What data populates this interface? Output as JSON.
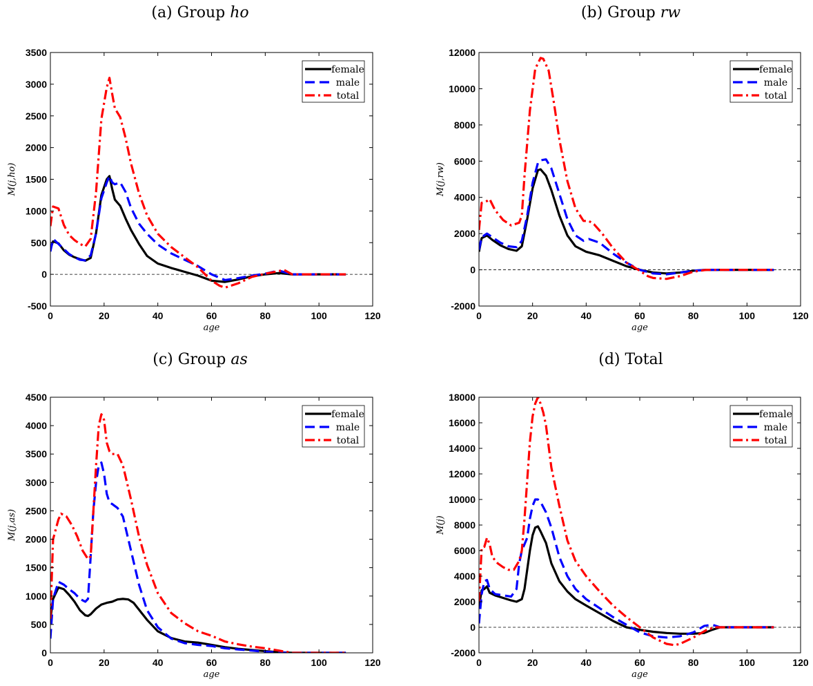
{
  "chart_data": [
    {
      "type": "line",
      "caption_prefix": "(a) Group ",
      "caption_italic": "ho",
      "xlabel": "age",
      "ylabel": "M(j,ho)",
      "xlim": [
        0,
        120
      ],
      "ylim": [
        -500,
        3500
      ],
      "xticks": [
        0,
        20,
        40,
        60,
        80,
        100,
        120
      ],
      "yticks": [
        -500,
        0,
        500,
        1000,
        1500,
        2000,
        2500,
        3000,
        3500
      ],
      "legend_position": "top-right",
      "zero_line": true,
      "series": [
        {
          "name": "female",
          "color": "#000000",
          "dash": "solid",
          "x": [
            0,
            1,
            3,
            5,
            7,
            9,
            11,
            13,
            15,
            17,
            19,
            21,
            22,
            23,
            24,
            26,
            28,
            30,
            33,
            36,
            40,
            45,
            50,
            55,
            60,
            65,
            70,
            75,
            80,
            85,
            90,
            95,
            100,
            110
          ],
          "y": [
            400,
            520,
            490,
            380,
            310,
            270,
            240,
            215,
            260,
            650,
            1250,
            1500,
            1550,
            1350,
            1180,
            1080,
            880,
            700,
            480,
            290,
            170,
            100,
            40,
            -20,
            -100,
            -120,
            -80,
            -30,
            0,
            20,
            0,
            0,
            0,
            0
          ]
        },
        {
          "name": "male",
          "color": "#0000ff",
          "dash": "dash",
          "x": [
            0,
            1,
            3,
            5,
            7,
            9,
            11,
            13,
            15,
            17,
            19,
            21,
            22,
            23,
            24,
            26,
            28,
            30,
            33,
            36,
            40,
            45,
            50,
            55,
            60,
            65,
            70,
            75,
            80,
            85,
            90,
            95,
            100,
            110
          ],
          "y": [
            360,
            560,
            480,
            400,
            320,
            270,
            230,
            220,
            300,
            650,
            1200,
            1450,
            1550,
            1450,
            1420,
            1450,
            1300,
            1050,
            800,
            640,
            470,
            330,
            230,
            130,
            0,
            -90,
            -60,
            -20,
            10,
            60,
            0,
            0,
            0,
            0
          ]
        },
        {
          "name": "total",
          "color": "#ff0000",
          "dash": "dashdot",
          "x": [
            0,
            1,
            3,
            5,
            7,
            9,
            11,
            13,
            15,
            17,
            19,
            21,
            22,
            23,
            24,
            26,
            28,
            30,
            33,
            36,
            40,
            45,
            50,
            55,
            60,
            63,
            65,
            70,
            75,
            80,
            85,
            87,
            90,
            95,
            100,
            110
          ],
          "y": [
            760,
            1070,
            1040,
            780,
            620,
            540,
            480,
            440,
            560,
            1300,
            2450,
            2950,
            3100,
            2850,
            2620,
            2480,
            2150,
            1750,
            1280,
            930,
            640,
            430,
            270,
            110,
            -100,
            -180,
            -210,
            -140,
            -40,
            10,
            50,
            70,
            0,
            0,
            0,
            0
          ]
        }
      ]
    },
    {
      "type": "line",
      "caption_prefix": "(b) Group ",
      "caption_italic": "rw",
      "xlabel": "age",
      "ylabel": "M(j,rw)",
      "xlim": [
        0,
        120
      ],
      "ylim": [
        -2000,
        12000
      ],
      "xticks": [
        0,
        20,
        40,
        60,
        80,
        100,
        120
      ],
      "yticks": [
        -2000,
        0,
        2000,
        4000,
        6000,
        8000,
        10000,
        12000
      ],
      "legend_position": "top-right",
      "zero_line": true,
      "series": [
        {
          "name": "female",
          "color": "#000000",
          "dash": "solid",
          "x": [
            0,
            1,
            3,
            5,
            8,
            11,
            14,
            16,
            18,
            20,
            22,
            23,
            25,
            27,
            30,
            33,
            36,
            40,
            45,
            50,
            55,
            60,
            65,
            70,
            75,
            80,
            85,
            90,
            95,
            100,
            110
          ],
          "y": [
            1000,
            1750,
            1900,
            1650,
            1350,
            1150,
            1050,
            1300,
            2800,
            4500,
            5500,
            5550,
            5200,
            4400,
            3000,
            1900,
            1300,
            1000,
            800,
            500,
            200,
            0,
            -150,
            -200,
            -150,
            -50,
            0,
            0,
            0,
            0,
            0
          ]
        },
        {
          "name": "male",
          "color": "#0000ff",
          "dash": "dash",
          "x": [
            0,
            1,
            3,
            5,
            8,
            11,
            14,
            16,
            18,
            20,
            22,
            23,
            25,
            27,
            30,
            33,
            36,
            39,
            41,
            43,
            45,
            50,
            55,
            60,
            65,
            70,
            75,
            80,
            85,
            90,
            95,
            100,
            110
          ],
          "y": [
            1100,
            1800,
            2000,
            1800,
            1500,
            1300,
            1250,
            1600,
            3000,
            4800,
            5900,
            6050,
            6100,
            5600,
            4200,
            2800,
            1900,
            1600,
            1700,
            1600,
            1500,
            900,
            400,
            0,
            -200,
            -250,
            -150,
            -50,
            0,
            0,
            0,
            0,
            0
          ]
        },
        {
          "name": "total",
          "color": "#ff0000",
          "dash": "dashdot",
          "x": [
            0,
            1,
            3,
            4,
            6,
            9,
            12,
            15,
            16,
            17,
            19,
            21,
            23,
            24,
            26,
            28,
            30,
            33,
            36,
            39,
            41,
            43,
            46,
            50,
            55,
            60,
            63,
            65,
            70,
            75,
            80,
            85,
            90,
            95,
            100,
            110
          ],
          "y": [
            2200,
            3700,
            3800,
            3900,
            3300,
            2750,
            2450,
            2600,
            3000,
            5200,
            8800,
            11100,
            11700,
            11650,
            11000,
            9200,
            7200,
            4900,
            3400,
            2700,
            2700,
            2500,
            2000,
            1200,
            400,
            -50,
            -350,
            -450,
            -500,
            -350,
            -100,
            0,
            0,
            0,
            0,
            0
          ]
        }
      ]
    },
    {
      "type": "line",
      "caption_prefix": "(c) Group ",
      "caption_italic": "as",
      "xlabel": "age",
      "ylabel": "M(j,as)",
      "xlim": [
        0,
        120
      ],
      "ylim": [
        0,
        4500
      ],
      "xticks": [
        0,
        20,
        40,
        60,
        80,
        100,
        120
      ],
      "yticks": [
        0,
        500,
        1000,
        1500,
        2000,
        2500,
        3000,
        3500,
        4000,
        4500
      ],
      "legend_position": "top-right",
      "zero_line": true,
      "series": [
        {
          "name": "female",
          "color": "#000000",
          "dash": "solid",
          "x": [
            0,
            1,
            3,
            5,
            7,
            9,
            11,
            13,
            14,
            15,
            17,
            19,
            21,
            23,
            25,
            27,
            29,
            31,
            33,
            36,
            40,
            45,
            50,
            55,
            60,
            65,
            70,
            75,
            80,
            85,
            90,
            95,
            100,
            110
          ],
          "y": [
            600,
            950,
            1150,
            1120,
            1020,
            900,
            750,
            660,
            650,
            680,
            780,
            850,
            880,
            900,
            940,
            950,
            940,
            880,
            760,
            580,
            380,
            260,
            200,
            180,
            140,
            100,
            70,
            50,
            30,
            10,
            0,
            0,
            0,
            0
          ]
        },
        {
          "name": "male",
          "color": "#0000ff",
          "dash": "dash",
          "x": [
            0,
            1,
            3,
            5,
            7,
            9,
            11,
            13,
            14,
            15,
            16,
            17,
            18,
            19,
            20,
            21,
            22,
            23,
            25,
            27,
            30,
            33,
            36,
            40,
            45,
            50,
            55,
            60,
            65,
            70,
            75,
            80,
            85,
            90,
            95,
            100,
            110
          ],
          "y": [
            250,
            950,
            1250,
            1200,
            1120,
            1050,
            950,
            900,
            950,
            1700,
            2500,
            3000,
            3300,
            3350,
            3150,
            2800,
            2650,
            2620,
            2550,
            2400,
            1800,
            1200,
            750,
            450,
            250,
            170,
            140,
            120,
            80,
            60,
            40,
            20,
            5,
            0,
            0,
            0,
            0
          ]
        },
        {
          "name": "total",
          "color": "#ff0000",
          "dash": "dashdot",
          "x": [
            0,
            1,
            3,
            4,
            6,
            8,
            10,
            12,
            14,
            15,
            16,
            17,
            18,
            19,
            20,
            21,
            22,
            23,
            25,
            27,
            30,
            33,
            36,
            40,
            45,
            50,
            55,
            60,
            65,
            70,
            75,
            80,
            85,
            90,
            95,
            100,
            110
          ],
          "y": [
            600,
            2000,
            2350,
            2450,
            2400,
            2250,
            2050,
            1800,
            1650,
            1700,
            2500,
            3300,
            4000,
            4200,
            4100,
            3700,
            3550,
            3500,
            3500,
            3300,
            2700,
            2050,
            1550,
            1050,
            700,
            520,
            380,
            300,
            200,
            150,
            110,
            80,
            40,
            0,
            0,
            0,
            0
          ]
        }
      ]
    },
    {
      "type": "line",
      "caption_prefix": "(d) Total",
      "caption_italic": "",
      "xlabel": "age",
      "ylabel": "M(j)",
      "xlim": [
        0,
        120
      ],
      "ylim": [
        -2000,
        18000
      ],
      "xticks": [
        0,
        20,
        40,
        60,
        80,
        100,
        120
      ],
      "yticks": [
        -2000,
        0,
        2000,
        4000,
        6000,
        8000,
        10000,
        12000,
        14000,
        16000,
        18000
      ],
      "legend_position": "top-right",
      "zero_line": true,
      "series": [
        {
          "name": "female",
          "color": "#000000",
          "dash": "solid",
          "x": [
            0,
            1,
            2,
            3,
            4,
            6,
            9,
            12,
            14,
            16,
            17,
            18,
            19,
            20,
            21,
            22,
            23,
            25,
            27,
            30,
            33,
            36,
            40,
            45,
            50,
            55,
            60,
            65,
            70,
            75,
            80,
            84,
            87,
            90,
            95,
            100,
            110
          ],
          "y": [
            1600,
            2900,
            3000,
            3200,
            2700,
            2500,
            2300,
            2100,
            2000,
            2200,
            3000,
            4500,
            6000,
            7200,
            7800,
            7900,
            7500,
            6600,
            5000,
            3600,
            2800,
            2200,
            1700,
            1100,
            500,
            0,
            -200,
            -350,
            -450,
            -500,
            -500,
            -450,
            -200,
            0,
            0,
            0,
            0
          ]
        },
        {
          "name": "male",
          "color": "#0000ff",
          "dash": "dash",
          "x": [
            0,
            1,
            2,
            3,
            4,
            6,
            9,
            12,
            14,
            15,
            16,
            17,
            18,
            19,
            20,
            21,
            22,
            23,
            25,
            27,
            30,
            33,
            36,
            40,
            45,
            50,
            55,
            60,
            65,
            70,
            75,
            80,
            84,
            87,
            90,
            95,
            100,
            110
          ],
          "y": [
            300,
            2600,
            3600,
            3700,
            3000,
            2600,
            2500,
            2400,
            3000,
            5000,
            6000,
            6500,
            7000,
            8500,
            9500,
            10000,
            10000,
            9800,
            9000,
            7800,
            5500,
            4000,
            3000,
            2200,
            1500,
            800,
            200,
            -400,
            -700,
            -800,
            -700,
            -400,
            100,
            200,
            0,
            0,
            0,
            0
          ]
        },
        {
          "name": "total",
          "color": "#ff0000",
          "dash": "dashdot",
          "x": [
            0,
            1,
            2,
            3,
            4,
            5,
            7,
            9,
            11,
            13,
            15,
            16,
            17,
            18,
            19,
            20,
            21,
            22,
            23,
            24,
            25,
            27,
            30,
            33,
            36,
            40,
            45,
            50,
            55,
            60,
            65,
            70,
            73,
            75,
            80,
            85,
            88,
            90,
            95,
            100,
            110
          ],
          "y": [
            2000,
            6200,
            6300,
            7000,
            6500,
            5500,
            5000,
            4700,
            4500,
            4500,
            5200,
            6000,
            8500,
            11500,
            14500,
            16500,
            17500,
            18000,
            17500,
            16800,
            15800,
            12500,
            9500,
            6800,
            5200,
            4000,
            2800,
            1700,
            800,
            0,
            -800,
            -1300,
            -1400,
            -1300,
            -800,
            -200,
            0,
            0,
            0,
            0,
            0
          ]
        }
      ]
    }
  ]
}
